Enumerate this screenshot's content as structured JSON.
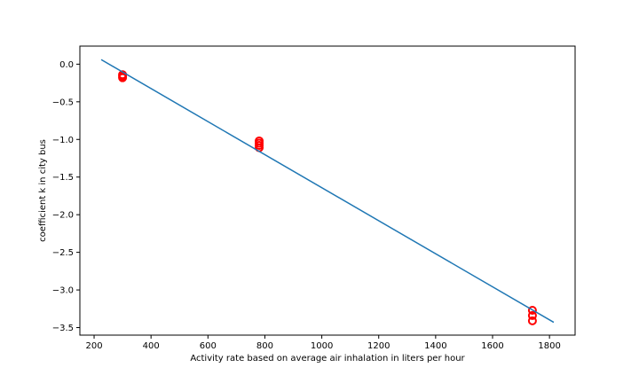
{
  "chart_data": {
    "type": "scatter",
    "title": "",
    "xlabel": "Activity rate based on average air inhalation in liters per hour",
    "ylabel": "coefficient k in city bus",
    "xlim": [
      150,
      1890
    ],
    "ylim": [
      -3.6,
      0.24
    ],
    "x_ticks": [
      200,
      400,
      600,
      800,
      1000,
      1200,
      1400,
      1600,
      1800
    ],
    "y_ticks": [
      0.0,
      -0.5,
      -1.0,
      -1.5,
      -2.0,
      -2.5,
      -3.0,
      -3.5
    ],
    "x_tick_labels": [
      "200",
      "400",
      "600",
      "800",
      "1000",
      "1200",
      "1400",
      "1600",
      "1800"
    ],
    "y_tick_labels": [
      "0.0",
      "−0.5",
      "−1.0",
      "−1.5",
      "−2.0",
      "−2.5",
      "−3.0",
      "−3.5"
    ],
    "grid": false,
    "series": [
      {
        "kind": "scatter",
        "color": "#ff0000",
        "marker": "circle",
        "points": [
          {
            "x": 300,
            "y": -0.14
          },
          {
            "x": 300,
            "y": -0.16
          },
          {
            "x": 300,
            "y": -0.18
          },
          {
            "x": 780,
            "y": -1.02
          },
          {
            "x": 780,
            "y": -1.05
          },
          {
            "x": 780,
            "y": -1.08
          },
          {
            "x": 780,
            "y": -1.11
          },
          {
            "x": 1740,
            "y": -3.27
          },
          {
            "x": 1740,
            "y": -3.34
          },
          {
            "x": 1740,
            "y": -3.41
          }
        ]
      },
      {
        "kind": "line",
        "color": "#1f77b4",
        "points": [
          {
            "x": 225,
            "y": 0.06
          },
          {
            "x": 1815,
            "y": -3.43
          }
        ]
      }
    ]
  }
}
